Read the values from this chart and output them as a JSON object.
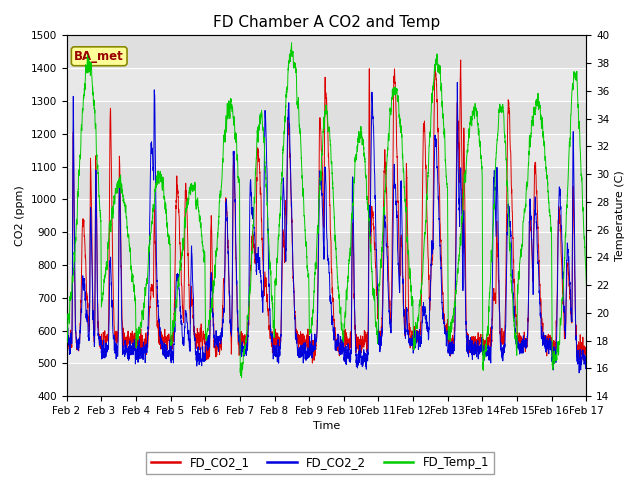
{
  "title": "FD Chamber A CO2 and Temp",
  "xlabel": "Time",
  "ylabel_left": "CO2 (ppm)",
  "ylabel_right": "Temperature (C)",
  "ylim_left": [
    400,
    1500
  ],
  "ylim_right": [
    14,
    40
  ],
  "yticks_left": [
    400,
    500,
    600,
    700,
    800,
    900,
    1000,
    1100,
    1200,
    1300,
    1400,
    1500
  ],
  "yticks_right": [
    14,
    16,
    18,
    20,
    22,
    24,
    26,
    28,
    30,
    32,
    34,
    36,
    38,
    40
  ],
  "x_tick_labels": [
    "Feb 2",
    "Feb 3",
    "Feb 4",
    "Feb 5",
    "Feb 6",
    "Feb 7",
    "Feb 8",
    "Feb 9",
    "Feb 10",
    "Feb 11",
    "Feb 12",
    "Feb 13",
    "Feb 14",
    "Feb 15",
    "Feb 16",
    "Feb 17"
  ],
  "color_co2_1": "#dd0000",
  "color_co2_2": "#0000dd",
  "color_temp": "#00cc00",
  "legend_label_1": "FD_CO2_1",
  "legend_label_2": "FD_CO2_2",
  "legend_label_3": "FD_Temp_1",
  "badge_text": "BA_met",
  "badge_facecolor": "#ffff99",
  "badge_edgecolor": "#888800",
  "badge_textcolor": "#990000",
  "plot_bg_color": "#e8e8e8",
  "fig_bg_color": "#ffffff",
  "grid_color": "#ffffff",
  "title_fontsize": 11,
  "n_days": 15,
  "pts_per_day": 288
}
